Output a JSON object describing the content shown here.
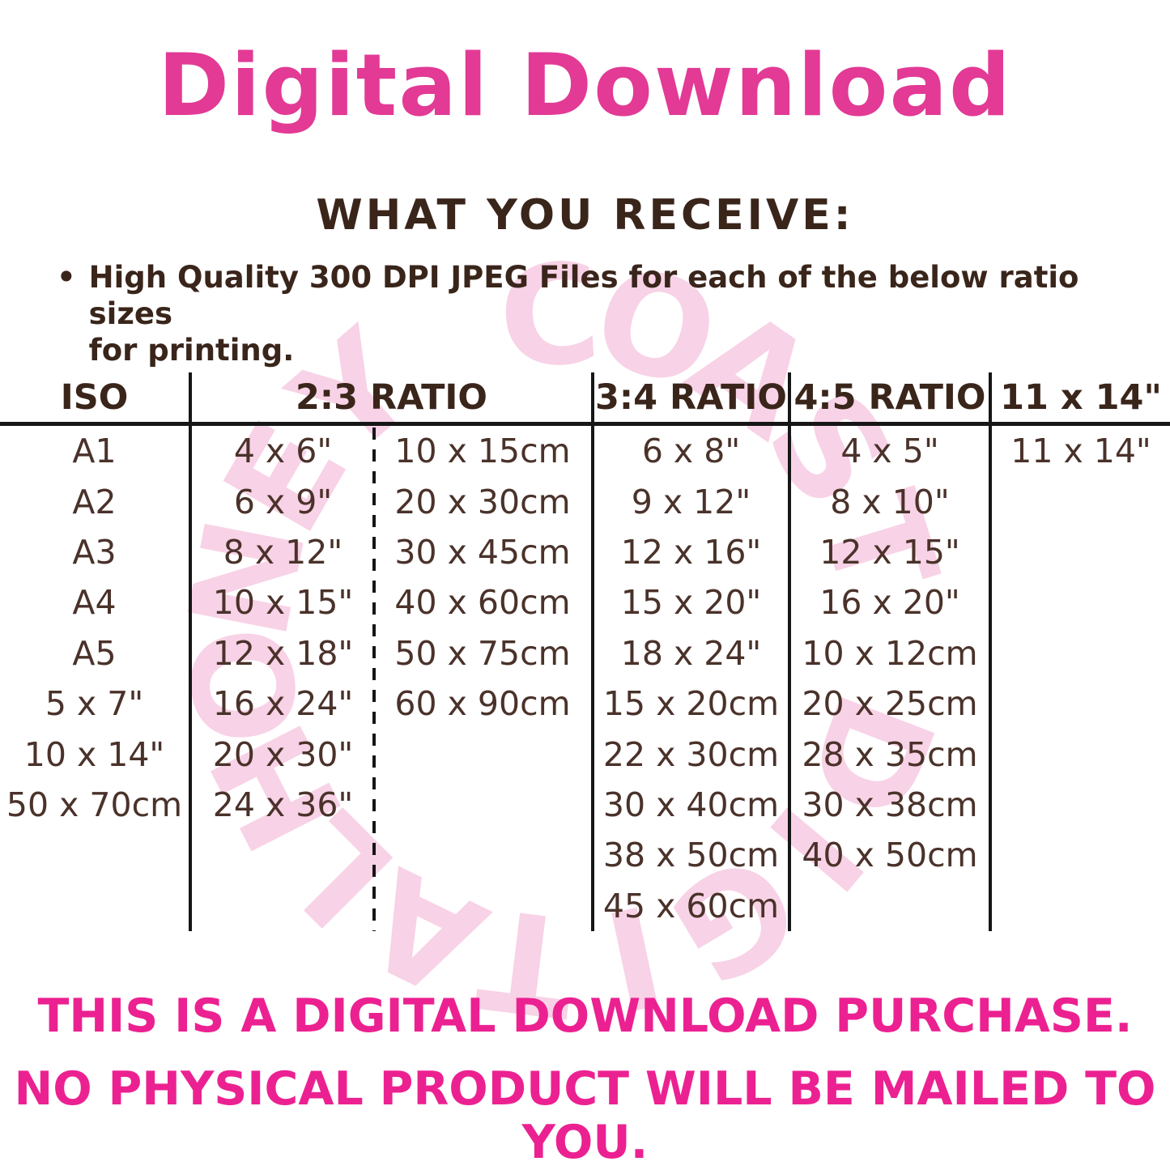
{
  "title": "Digital Download",
  "section_heading": "WHAT YOU RECEIVE:",
  "bullet": {
    "marker": "•",
    "lines": [
      "High Quality 300 DPI JPEG Files for each of the below ratio sizes",
      "for printing."
    ]
  },
  "watermark": {
    "text": "HONEY COAST DIGITAL"
  },
  "table": {
    "columns": [
      {
        "label": "ISO",
        "span": 1
      },
      {
        "label": "2:3 RATIO",
        "span": 2
      },
      {
        "label": "3:4 RATIO",
        "span": 1
      },
      {
        "label": "4:5 RATIO",
        "span": 1
      },
      {
        "label": "11 x 14\"",
        "span": 1
      }
    ],
    "rows": [
      [
        "A1",
        "4 x 6\"",
        "10 x 15cm",
        "6 x 8\"",
        "4 x 5\"",
        "11 x 14\""
      ],
      [
        "A2",
        "6 x 9\"",
        "20 x 30cm",
        "9 x 12\"",
        "8 x 10\"",
        ""
      ],
      [
        "A3",
        "8 x 12\"",
        "30 x 45cm",
        "12 x 16\"",
        "12 x 15\"",
        ""
      ],
      [
        "A4",
        "10 x 15\"",
        "40 x 60cm",
        "15 x 20\"",
        "16 x 20\"",
        ""
      ],
      [
        "A5",
        "12 x 18\"",
        "50 x 75cm",
        "18 x 24\"",
        "10 x 12cm",
        ""
      ],
      [
        "5 x 7\"",
        "16 x 24\"",
        "60 x 90cm",
        "15 x 20cm",
        "20 x 25cm",
        ""
      ],
      [
        "10 x 14\"",
        "20 x 30\"",
        "",
        "22 x 30cm",
        "28 x 35cm",
        ""
      ],
      [
        "50 x 70cm",
        "24 x 36\"",
        "",
        "30 x 40cm",
        "30 x 38cm",
        ""
      ],
      [
        "",
        "",
        "",
        "38 x 50cm",
        "40 x 50cm",
        ""
      ],
      [
        "",
        "",
        "",
        "45 x 60cm",
        "",
        ""
      ]
    ]
  },
  "footer": {
    "line1": "THIS IS A DIGITAL DOWNLOAD PURCHASE.",
    "line2": "NO PHYSICAL PRODUCT WILL BE MAILED TO YOU."
  },
  "colors": {
    "title_pink": "#e23a95",
    "footer_pink": "#ec2191",
    "heading_brown": "#3a251b",
    "table_brown": "#4a322a",
    "watermark_pink": "#f8d2e6",
    "line_black": "#161616"
  }
}
